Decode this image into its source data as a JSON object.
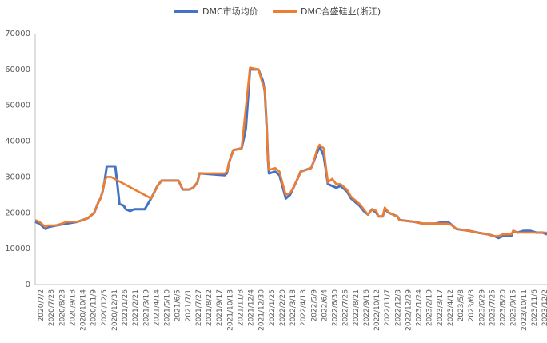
{
  "chart_data": {
    "type": "line",
    "title": "",
    "xlabel": "",
    "ylabel": "",
    "ylim": [
      0,
      70000
    ],
    "yticks": [
      0,
      10000,
      20000,
      30000,
      40000,
      50000,
      60000,
      70000
    ],
    "ytick_labels": [
      "0",
      "10000",
      "20000",
      "30000",
      "40000",
      "50000",
      "60000",
      "70000"
    ],
    "xtick_labels": [
      "2020/7/2",
      "2020/7/28",
      "2020/8/23",
      "2020/9/18",
      "2020/10/14",
      "2020/11/9",
      "2020/12/5",
      "2020/12/31",
      "2021/1/26",
      "2021/2/21",
      "2021/3/19",
      "2021/4/14",
      "2021/5/10",
      "2021/6/5",
      "2021/7/1",
      "2021/7/27",
      "2021/8/22",
      "2021/9/17",
      "2021/10/13",
      "2021/11/8",
      "2021/12/4",
      "2021/12/30",
      "2022/1/25",
      "2022/2/20",
      "2022/3/18",
      "2022/4/13",
      "2022/5/9",
      "2022/6/4",
      "2022/6/30",
      "2022/7/26",
      "2022/8/21",
      "2022/9/16",
      "2022/10/12",
      "2022/11/7",
      "2022/12/3",
      "2022/12/29",
      "2023/1/24",
      "2023/2/19",
      "2023/3/17",
      "2023/4/12",
      "2023/5/8",
      "2023/6/3",
      "2023/6/29",
      "2023/7/25",
      "2023/8/20",
      "2023/9/15",
      "2023/10/11",
      "2023/11/6",
      "2023/12/2"
    ],
    "grid": false,
    "legend_position": "top",
    "series": [
      {
        "name": "DMC市场均价",
        "color": "#4472C4",
        "points": [
          [
            0,
            17500
          ],
          [
            2,
            17000
          ],
          [
            4,
            16000
          ],
          [
            5,
            15500
          ],
          [
            6,
            16000
          ],
          [
            10,
            16500
          ],
          [
            15,
            17000
          ],
          [
            20,
            17500
          ],
          [
            25,
            18500
          ],
          [
            28,
            20000
          ],
          [
            30,
            23000
          ],
          [
            31,
            24000
          ],
          [
            32,
            26000
          ],
          [
            33,
            29000
          ],
          [
            34,
            33000
          ],
          [
            38,
            33000
          ],
          [
            39,
            28000
          ],
          [
            40,
            22500
          ],
          [
            42,
            22000
          ],
          [
            43,
            21000
          ],
          [
            45,
            20500
          ],
          [
            47,
            21000
          ],
          [
            52,
            21000
          ],
          [
            53,
            22000
          ],
          [
            55,
            24000
          ],
          [
            58,
            27500
          ],
          [
            60,
            29000
          ],
          [
            68,
            29000
          ],
          [
            70,
            26500
          ],
          [
            73,
            26500
          ],
          [
            75,
            27000
          ],
          [
            77,
            28500
          ],
          [
            78,
            31000
          ],
          [
            90,
            30500
          ],
          [
            91,
            31000
          ],
          [
            92,
            34000
          ],
          [
            94,
            37500
          ],
          [
            98,
            38000
          ],
          [
            100,
            43500
          ],
          [
            102,
            60000
          ],
          [
            106,
            60000
          ],
          [
            108,
            57000
          ],
          [
            109,
            54000
          ],
          [
            110,
            43000
          ],
          [
            110.5,
            35000
          ],
          [
            111,
            31000
          ],
          [
            114,
            31500
          ],
          [
            116,
            30500
          ],
          [
            119,
            24000
          ],
          [
            121,
            25000
          ],
          [
            123,
            27500
          ],
          [
            125,
            30000
          ],
          [
            126,
            31500
          ],
          [
            131,
            32500
          ],
          [
            132,
            34000
          ],
          [
            134,
            37000
          ],
          [
            135,
            38500
          ],
          [
            137,
            36000
          ],
          [
            138,
            32000
          ],
          [
            139,
            28000
          ],
          [
            143,
            27000
          ],
          [
            145,
            27500
          ],
          [
            148,
            26000
          ],
          [
            150,
            24000
          ],
          [
            152,
            23000
          ],
          [
            154,
            22000
          ],
          [
            156,
            20500
          ],
          [
            158,
            19500
          ],
          [
            160,
            21000
          ],
          [
            162,
            20000
          ],
          [
            163,
            19000
          ],
          [
            165,
            19000
          ],
          [
            166,
            21000
          ],
          [
            168,
            20000
          ],
          [
            172,
            19000
          ],
          [
            173,
            18000
          ],
          [
            180,
            17500
          ],
          [
            184,
            17000
          ],
          [
            190,
            17000
          ],
          [
            194,
            17500
          ],
          [
            196,
            17500
          ],
          [
            198,
            16500
          ],
          [
            200,
            15500
          ],
          [
            206,
            15000
          ],
          [
            210,
            14500
          ],
          [
            215,
            14000
          ],
          [
            218,
            13500
          ],
          [
            220,
            13000
          ],
          [
            222,
            13500
          ],
          [
            224,
            13500
          ],
          [
            226,
            13500
          ],
          [
            227,
            15000
          ],
          [
            229,
            14500
          ],
          [
            232,
            15000
          ],
          [
            235,
            15000
          ],
          [
            238,
            14500
          ],
          [
            241,
            14500
          ],
          [
            243,
            14000
          ]
        ]
      },
      {
        "name": "DMC合盛硅业(浙江)",
        "color": "#ED7D31",
        "points": [
          [
            0,
            18000
          ],
          [
            2,
            17500
          ],
          [
            4,
            16500
          ],
          [
            5,
            16000
          ],
          [
            6,
            16500
          ],
          [
            10,
            16500
          ],
          [
            15,
            17500
          ],
          [
            20,
            17500
          ],
          [
            25,
            18500
          ],
          [
            28,
            20000
          ],
          [
            30,
            23000
          ],
          [
            31,
            24000
          ],
          [
            32,
            26000
          ],
          [
            33,
            29000
          ],
          [
            34,
            30000
          ],
          [
            36,
            30000
          ],
          [
            55,
            24000
          ],
          [
            58,
            27500
          ],
          [
            60,
            29000
          ],
          [
            68,
            29000
          ],
          [
            70,
            26500
          ],
          [
            73,
            26500
          ],
          [
            75,
            27000
          ],
          [
            77,
            28500
          ],
          [
            78,
            31000
          ],
          [
            90,
            31000
          ],
          [
            91,
            31500
          ],
          [
            92,
            34000
          ],
          [
            94,
            37500
          ],
          [
            98,
            38000
          ],
          [
            102,
            60500
          ],
          [
            106,
            60000
          ],
          [
            108,
            56000
          ],
          [
            109,
            54500
          ],
          [
            110,
            43000
          ],
          [
            110.5,
            35000
          ],
          [
            111,
            32000
          ],
          [
            114,
            32500
          ],
          [
            116,
            31500
          ],
          [
            118,
            27000
          ],
          [
            119,
            25000
          ],
          [
            121,
            25500
          ],
          [
            123,
            27500
          ],
          [
            125,
            30000
          ],
          [
            126,
            31500
          ],
          [
            131,
            32500
          ],
          [
            132,
            34000
          ],
          [
            134,
            38000
          ],
          [
            135,
            39000
          ],
          [
            137,
            38000
          ],
          [
            138,
            33000
          ],
          [
            139,
            28500
          ],
          [
            141,
            29500
          ],
          [
            143,
            28000
          ],
          [
            145,
            28000
          ],
          [
            148,
            26500
          ],
          [
            150,
            24500
          ],
          [
            152,
            23500
          ],
          [
            154,
            22500
          ],
          [
            156,
            21000
          ],
          [
            158,
            19500
          ],
          [
            160,
            21000
          ],
          [
            162,
            20500
          ],
          [
            163,
            19000
          ],
          [
            165,
            19000
          ],
          [
            166,
            21500
          ],
          [
            168,
            20000
          ],
          [
            172,
            19000
          ],
          [
            173,
            18000
          ],
          [
            180,
            17500
          ],
          [
            184,
            17000
          ],
          [
            190,
            17000
          ],
          [
            194,
            17000
          ],
          [
            196,
            17000
          ],
          [
            198,
            16500
          ],
          [
            200,
            15500
          ],
          [
            206,
            15000
          ],
          [
            210,
            14500
          ],
          [
            215,
            14000
          ],
          [
            218,
            13500
          ],
          [
            220,
            13500
          ],
          [
            222,
            14000
          ],
          [
            224,
            14000
          ],
          [
            226,
            14000
          ],
          [
            227,
            15000
          ],
          [
            229,
            14500
          ],
          [
            232,
            14500
          ],
          [
            235,
            14500
          ],
          [
            238,
            14500
          ],
          [
            241,
            14500
          ],
          [
            243,
            14500
          ]
        ]
      }
    ]
  }
}
